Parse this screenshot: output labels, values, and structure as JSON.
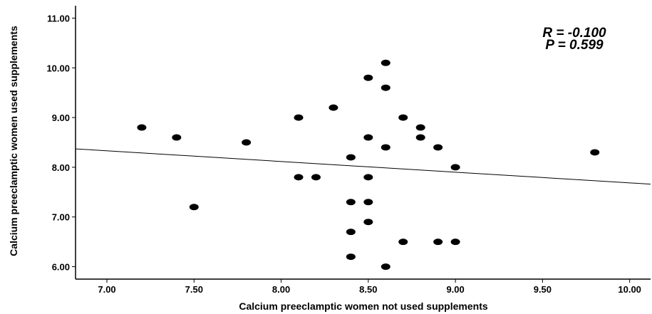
{
  "chart_data": {
    "type": "scatter",
    "xlabel": "Calcium preeclamptic women not used supplements",
    "ylabel": "Calcium preeclamptic women  used supplements",
    "xlim": [
      6.82,
      10.12
    ],
    "ylim": [
      5.75,
      11.25
    ],
    "x_ticks": [
      "7.00",
      "7.50",
      "8.00",
      "8.50",
      "9.00",
      "9.50",
      "10.00"
    ],
    "y_ticks": [
      "6.00",
      "7.00",
      "8.00",
      "9.00",
      "10.00",
      "11.00"
    ],
    "grid": false,
    "annotations": {
      "r_text": "R =  -0.100",
      "p_text": "P = 0.599"
    },
    "fit_line": {
      "x": [
        6.82,
        10.12
      ],
      "y": [
        8.37,
        7.66
      ]
    },
    "points": [
      {
        "x": 7.2,
        "y": 8.8
      },
      {
        "x": 7.4,
        "y": 8.6
      },
      {
        "x": 7.5,
        "y": 7.2
      },
      {
        "x": 7.8,
        "y": 8.5
      },
      {
        "x": 8.1,
        "y": 9.0
      },
      {
        "x": 8.1,
        "y": 7.8
      },
      {
        "x": 8.2,
        "y": 7.8
      },
      {
        "x": 8.3,
        "y": 9.2
      },
      {
        "x": 8.4,
        "y": 8.2
      },
      {
        "x": 8.4,
        "y": 7.3
      },
      {
        "x": 8.4,
        "y": 6.7
      },
      {
        "x": 8.4,
        "y": 6.2
      },
      {
        "x": 8.5,
        "y": 9.8
      },
      {
        "x": 8.5,
        "y": 8.6
      },
      {
        "x": 8.5,
        "y": 7.8
      },
      {
        "x": 8.5,
        "y": 7.3
      },
      {
        "x": 8.5,
        "y": 6.9
      },
      {
        "x": 8.6,
        "y": 10.1
      },
      {
        "x": 8.6,
        "y": 9.6
      },
      {
        "x": 8.6,
        "y": 8.4
      },
      {
        "x": 8.6,
        "y": 6.0
      },
      {
        "x": 8.7,
        "y": 9.0
      },
      {
        "x": 8.7,
        "y": 6.5
      },
      {
        "x": 8.8,
        "y": 8.8
      },
      {
        "x": 8.8,
        "y": 8.6
      },
      {
        "x": 8.9,
        "y": 8.4
      },
      {
        "x": 8.9,
        "y": 6.5
      },
      {
        "x": 9.0,
        "y": 8.0
      },
      {
        "x": 9.0,
        "y": 6.5
      },
      {
        "x": 9.8,
        "y": 8.3
      }
    ]
  }
}
